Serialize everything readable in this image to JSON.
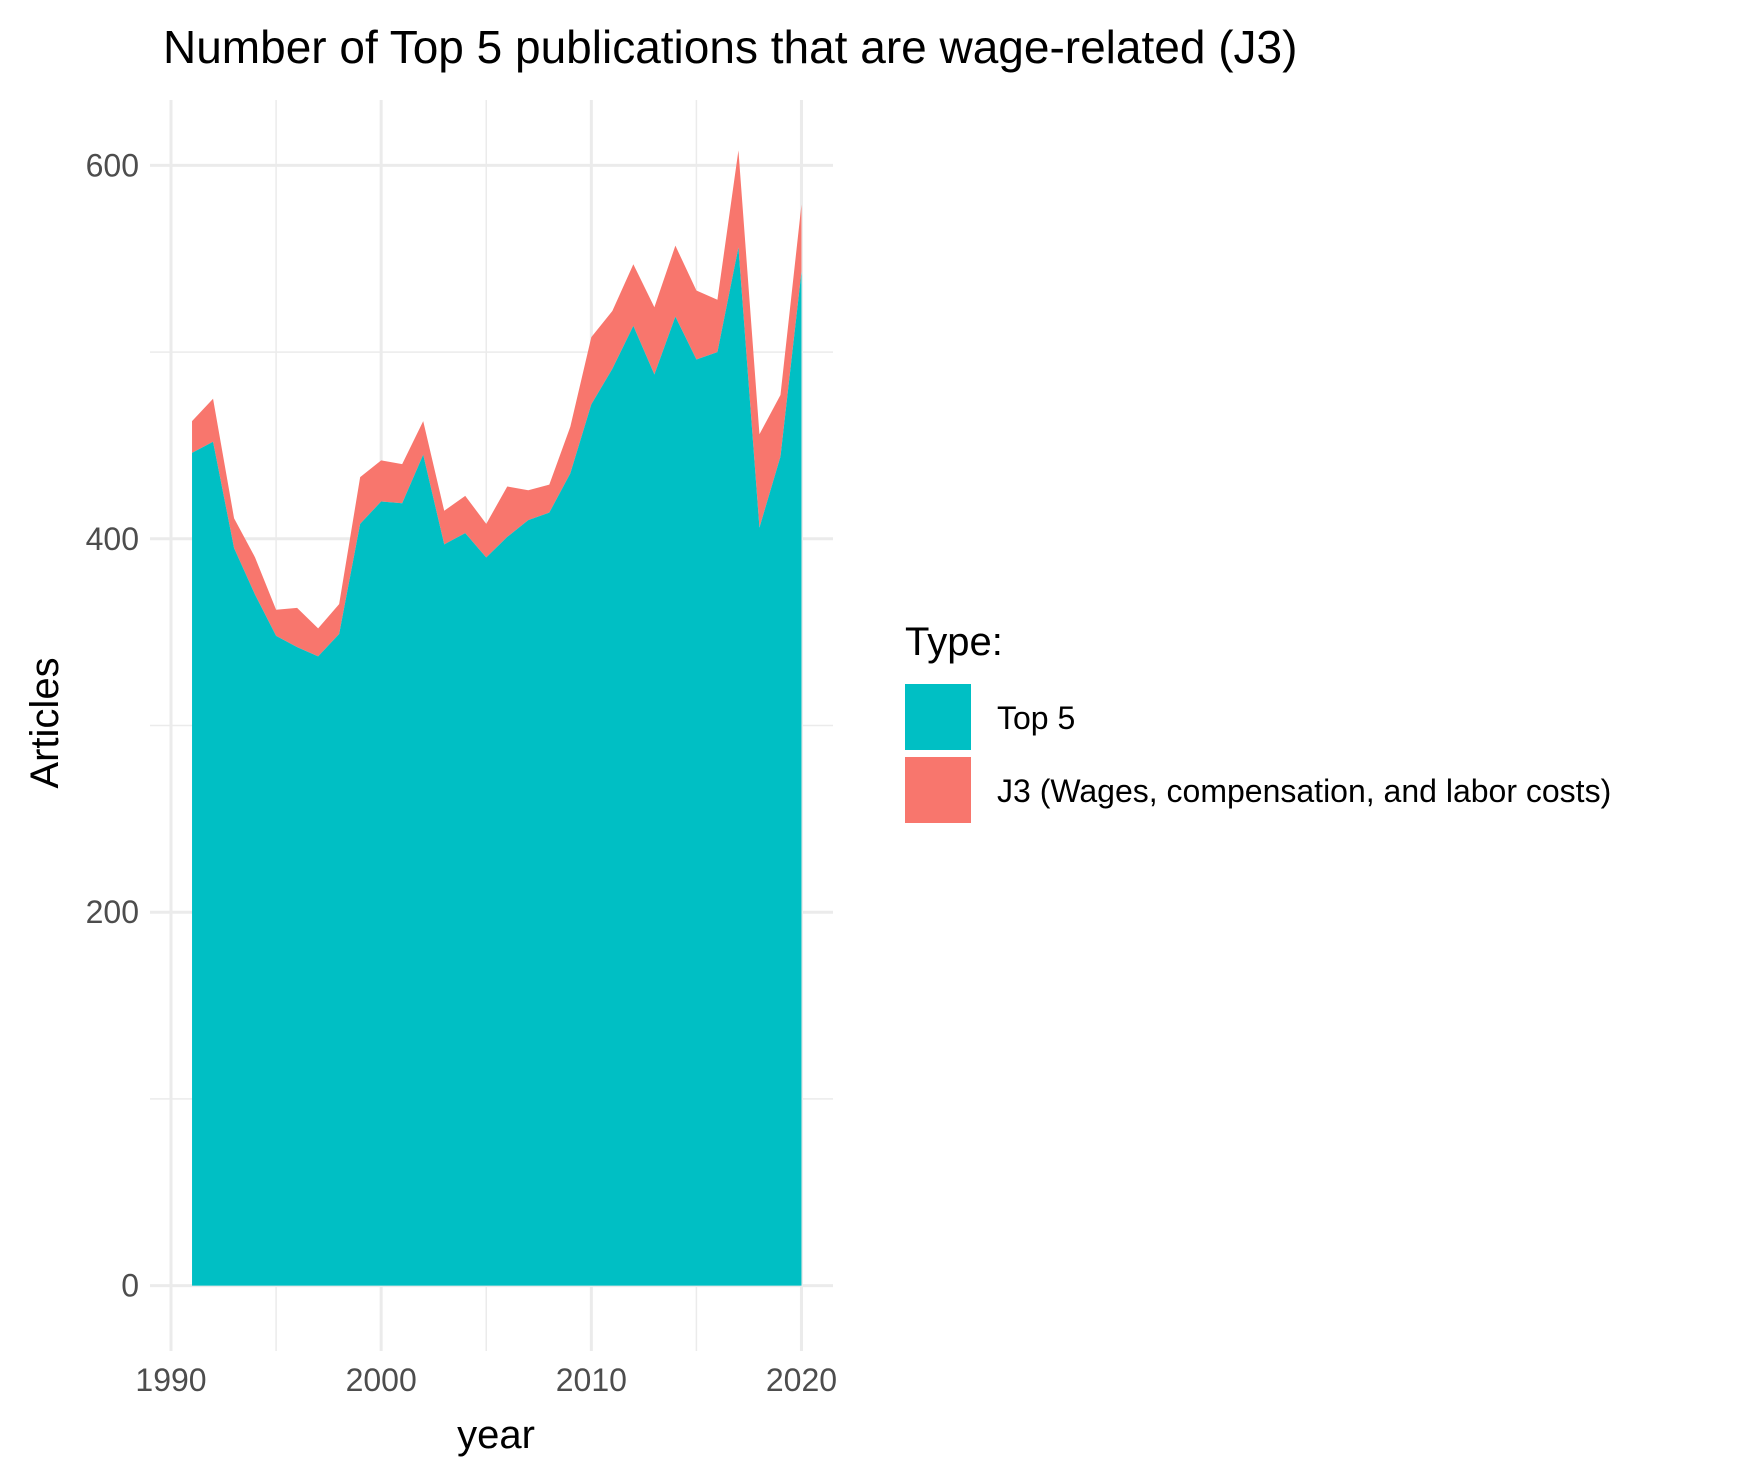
{
  "chart_data": {
    "type": "area",
    "stacked": true,
    "title": "Number of Top 5 publications that are wage-related (J3)",
    "xlabel": "year",
    "ylabel": "Articles",
    "xlim": [
      1989,
      2021.5
    ],
    "ylim": [
      -35,
      635
    ],
    "x_ticks": [
      1990,
      2000,
      2010,
      2020
    ],
    "y_ticks": [
      0,
      200,
      400,
      600
    ],
    "x_tick_labels": [
      "1990",
      "2000",
      "2010",
      "2020"
    ],
    "y_tick_labels": [
      "0",
      "200",
      "400",
      "600"
    ],
    "grid": true,
    "legend": {
      "title": "Type:",
      "position": "right"
    },
    "x": [
      1991,
      1992,
      1993,
      1994,
      1995,
      1996,
      1997,
      1998,
      1999,
      2000,
      2001,
      2002,
      2003,
      2004,
      2005,
      2006,
      2007,
      2008,
      2009,
      2010,
      2011,
      2012,
      2013,
      2014,
      2015,
      2016,
      2017,
      2018,
      2019,
      2020
    ],
    "series": [
      {
        "name": "Top 5",
        "color": "#00BFC4",
        "values": [
          446,
          452,
          395,
          370,
          348,
          342,
          337,
          349,
          408,
          420,
          419,
          445,
          397,
          403,
          390,
          401,
          410,
          414,
          435,
          472,
          491,
          514,
          488,
          519,
          496,
          500,
          556,
          406,
          444,
          543
        ]
      },
      {
        "name": "J3 (Wages, compensation, and labor costs)",
        "color": "#F8766D",
        "values": [
          17,
          23,
          16,
          20,
          14,
          21,
          15,
          16,
          25,
          22,
          21,
          18,
          18,
          20,
          18,
          27,
          16,
          15,
          25,
          36,
          31,
          33,
          36,
          38,
          37,
          28,
          52,
          50,
          33,
          36
        ]
      }
    ]
  }
}
